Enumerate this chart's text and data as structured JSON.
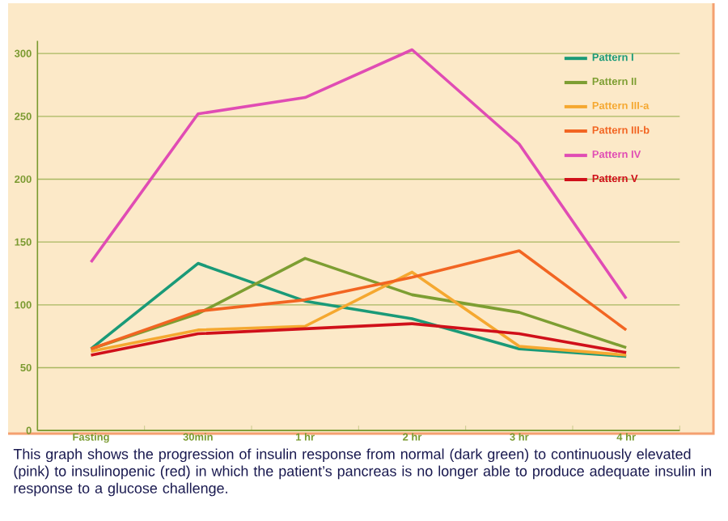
{
  "chart_data": {
    "type": "line",
    "categories": [
      "Fasting",
      "30min",
      "1 hr",
      "2 hr",
      "3 hr",
      "4 hr"
    ],
    "series": [
      {
        "name": "Pattern I",
        "color": "#1a9a78",
        "values": [
          65,
          133,
          103,
          89,
          65,
          59
        ]
      },
      {
        "name": "Pattern II",
        "color": "#7d9e32",
        "values": [
          65,
          93,
          137,
          108,
          94,
          66
        ]
      },
      {
        "name": "Pattern III-a",
        "color": "#f5a830",
        "values": [
          63,
          80,
          83,
          126,
          67,
          60
        ]
      },
      {
        "name": "Pattern III-b",
        "color": "#f26522",
        "values": [
          65,
          95,
          104,
          122,
          143,
          80
        ]
      },
      {
        "name": "Pattern IV",
        "color": "#e04cb4",
        "values": [
          134,
          252,
          265,
          303,
          228,
          105
        ]
      },
      {
        "name": "Pattern V",
        "color": "#d0101a",
        "values": [
          60,
          77,
          81,
          85,
          77,
          62
        ]
      }
    ],
    "ylim": [
      0,
      310
    ],
    "yticks": [
      0,
      50,
      100,
      150,
      200,
      250,
      300
    ],
    "grid": "y",
    "legend": "top right",
    "marker": "none",
    "line_style": "solid",
    "annotations": [
      "This graph shows the progression of insulin response from normal (dark green) to continuously elevated (pink) to insulinopenic (red) in which the patient’s pancreas is no longer able to produce adequate  insulin in  response to a glucose challenge."
    ]
  }
}
